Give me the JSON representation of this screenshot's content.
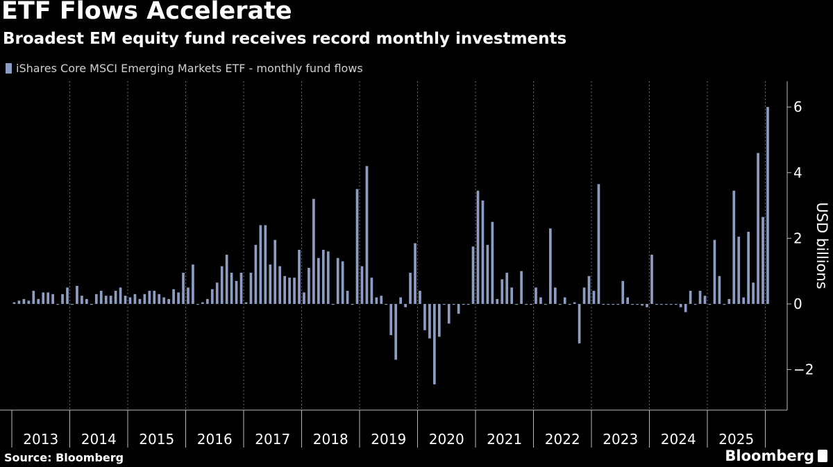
{
  "header": {
    "title": "ETF Flows Accelerate",
    "subtitle": "Broadest EM equity fund receives record monthly investments"
  },
  "footer": {
    "source": "Source: Bloomberg",
    "brand": "Bloomberg"
  },
  "colors": {
    "background": "#000000",
    "bar": "#8b9dc3",
    "grid": "#6a6a6a",
    "text": "#ffffff"
  },
  "chart_data": {
    "type": "bar",
    "legend": [
      "iShares Core MSCI Emerging Markets ETF - monthly fund flows"
    ],
    "legend_position": "top-left",
    "ylabel": "USD billions",
    "ylim": [
      -3.3,
      6.8
    ],
    "yticks": [
      -2,
      0,
      2,
      4,
      6
    ],
    "year_labels": [
      "2013",
      "2014",
      "2015",
      "2016",
      "2017",
      "2018",
      "2019",
      "2020",
      "2021",
      "2022",
      "2023",
      "2024",
      "2025"
    ],
    "x_start": "2013-01",
    "grid": "vertical dotted at year boundaries",
    "series": [
      {
        "name": "iShares Core MSCI Emerging Markets ETF - monthly fund flows",
        "values": [
          0.05,
          0.1,
          0.15,
          0.1,
          0.4,
          0.15,
          0.35,
          0.35,
          0.3,
          0.0,
          0.3,
          0.5,
          0.0,
          0.55,
          0.25,
          0.15,
          0.0,
          0.3,
          0.4,
          0.25,
          0.25,
          0.4,
          0.5,
          0.25,
          0.2,
          0.3,
          0.15,
          0.3,
          0.4,
          0.4,
          0.3,
          0.2,
          0.15,
          0.45,
          0.35,
          0.95,
          0.5,
          1.2,
          0.0,
          0.05,
          0.15,
          0.45,
          0.65,
          1.15,
          1.5,
          0.95,
          0.7,
          0.95,
          0.05,
          0.95,
          1.8,
          2.4,
          2.4,
          1.2,
          1.95,
          1.15,
          0.85,
          0.8,
          0.8,
          1.65,
          0.35,
          1.1,
          3.2,
          1.4,
          1.65,
          1.6,
          0.0,
          1.4,
          1.3,
          0.4,
          0.0,
          3.5,
          1.15,
          4.2,
          0.8,
          0.2,
          0.25,
          0.0,
          -0.95,
          -1.7,
          0.2,
          -0.1,
          0.95,
          1.85,
          0.4,
          -0.8,
          -1.05,
          -2.45,
          -1.0,
          0.0,
          -0.6,
          0.0,
          -0.3,
          0.0,
          0.0,
          1.75,
          3.45,
          3.15,
          1.8,
          2.5,
          0.15,
          0.75,
          0.95,
          0.5,
          0.0,
          1.0,
          0.0,
          0.0,
          0.5,
          0.2,
          0.0,
          2.3,
          0.5,
          0.0,
          0.2,
          0.0,
          0.05,
          -1.2,
          0.5,
          0.85,
          0.4,
          3.65,
          0.0,
          0.0,
          0.0,
          0.0,
          0.7,
          0.2,
          0.0,
          0.0,
          -0.05,
          -0.1,
          1.5,
          0.0,
          0.0,
          0.0,
          0.0,
          0.0,
          -0.1,
          -0.25,
          0.4,
          0.0,
          0.4,
          0.25,
          0.0,
          1.95,
          0.85,
          0.0,
          0.15,
          3.45,
          2.05,
          0.2,
          2.2,
          0.65,
          4.6,
          2.65,
          6.0
        ]
      }
    ]
  }
}
